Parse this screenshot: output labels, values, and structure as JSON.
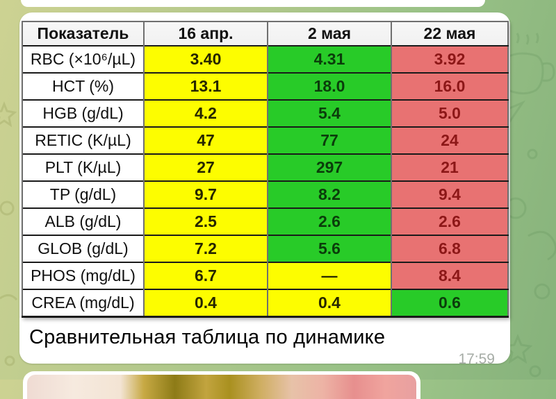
{
  "chat": {
    "background": {
      "left_color": "#cdd292",
      "right_color": "#86b27c"
    }
  },
  "message": {
    "caption": "Сравнительная таблица по динамике",
    "time": "17:59"
  },
  "table": {
    "columns": [
      "Показатель",
      "16 апр.",
      "2 мая",
      "22 мая"
    ],
    "rows": [
      {
        "label": "RBC (×10⁶/µL)",
        "values": [
          {
            "text": "3.40",
            "status": "yellow"
          },
          {
            "text": "4.31",
            "status": "green"
          },
          {
            "text": "3.92",
            "status": "red"
          }
        ]
      },
      {
        "label": "HCT (%)",
        "values": [
          {
            "text": "13.1",
            "status": "yellow"
          },
          {
            "text": "18.0",
            "status": "green"
          },
          {
            "text": "16.0",
            "status": "red"
          }
        ]
      },
      {
        "label": "HGB (g/dL)",
        "values": [
          {
            "text": "4.2",
            "status": "yellow"
          },
          {
            "text": "5.4",
            "status": "green"
          },
          {
            "text": "5.0",
            "status": "red"
          }
        ]
      },
      {
        "label": "RETIC (K/µL)",
        "values": [
          {
            "text": "47",
            "status": "yellow"
          },
          {
            "text": "77",
            "status": "green"
          },
          {
            "text": "24",
            "status": "red"
          }
        ]
      },
      {
        "label": "PLT (K/µL)",
        "values": [
          {
            "text": "27",
            "status": "yellow"
          },
          {
            "text": "297",
            "status": "green"
          },
          {
            "text": "21",
            "status": "red"
          }
        ]
      },
      {
        "label": "TP (g/dL)",
        "values": [
          {
            "text": "9.7",
            "status": "yellow"
          },
          {
            "text": "8.2",
            "status": "green"
          },
          {
            "text": "9.4",
            "status": "red"
          }
        ]
      },
      {
        "label": "ALB (g/dL)",
        "values": [
          {
            "text": "2.5",
            "status": "yellow"
          },
          {
            "text": "2.6",
            "status": "green"
          },
          {
            "text": "2.6",
            "status": "red"
          }
        ]
      },
      {
        "label": "GLOB (g/dL)",
        "values": [
          {
            "text": "7.2",
            "status": "yellow"
          },
          {
            "text": "5.6",
            "status": "green"
          },
          {
            "text": "6.8",
            "status": "red"
          }
        ]
      },
      {
        "label": "PHOS (mg/dL)",
        "values": [
          {
            "text": "6.7",
            "status": "yellow"
          },
          {
            "text": "—",
            "status": "yellow"
          },
          {
            "text": "8.4",
            "status": "red"
          }
        ]
      },
      {
        "label": "CREA (mg/dL)",
        "values": [
          {
            "text": "0.4",
            "status": "yellow"
          },
          {
            "text": "0.4",
            "status": "yellow"
          },
          {
            "text": "0.6",
            "status": "green"
          }
        ]
      }
    ]
  },
  "colors": {
    "yellow": "#fdfd00",
    "green": "#28cb28",
    "red": "#e87272",
    "yellow_text": "#262600",
    "green_text": "#0b3c0b",
    "red_text": "#8c1717",
    "header_bg": "#f1f1f1",
    "time_text": "#a6aca6"
  }
}
